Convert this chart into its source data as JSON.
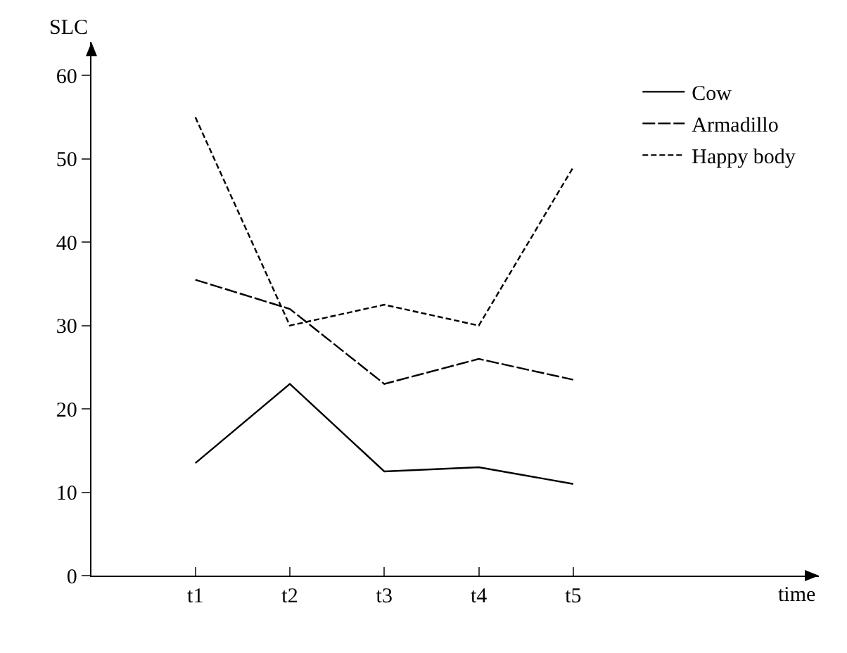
{
  "chart_data": {
    "type": "line",
    "annotations": [
      "time"
    ],
    "ylabel": "SLC",
    "categories": [
      "t1",
      "t2",
      "t3",
      "t4",
      "t5"
    ],
    "series": [
      {
        "name": "Cow",
        "color": "#000000",
        "line_style": "solid",
        "values": [
          13.5,
          23,
          12.5,
          13,
          11
        ]
      },
      {
        "name": "Armadillo",
        "color": "#000000",
        "line_style": "dashed",
        "values": [
          35.5,
          32,
          23,
          26,
          23.5
        ]
      },
      {
        "name": "Happy body",
        "color": "#000000",
        "line_style": "dotted",
        "values": [
          55,
          30,
          32.5,
          30,
          49
        ]
      }
    ],
    "ylim": [
      0,
      64
    ],
    "yticks": [
      0,
      10,
      20,
      30,
      40,
      50,
      60
    ],
    "grid": false,
    "legend": "top right",
    "marker": "none"
  }
}
